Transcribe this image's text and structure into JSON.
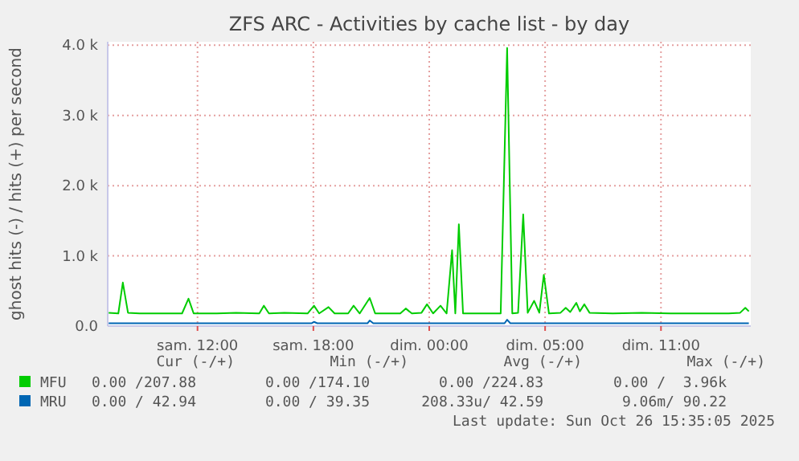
{
  "chart_data": {
    "type": "line",
    "title": "ZFS ARC - Activities by cache list - by day",
    "ylabel": "ghost hits (-) / hits (+) per second",
    "xlim": [
      "2025-10-25T05:21",
      "2025-10-26T14:39"
    ],
    "xticks": [
      {
        "value": "2025-10-25T10:00",
        "label": "sam. 12:00"
      },
      {
        "value": "2025-10-25T16:00",
        "label": "sam. 18:00"
      },
      {
        "value": "2025-10-25T22:00",
        "label": "dim. 00:00"
      },
      {
        "value": "2025-10-26T04:00",
        "label": "dim. 05:00"
      },
      {
        "value": "2025-10-26T10:00",
        "label": "dim. 11:00"
      }
    ],
    "ylim": [
      0,
      4050
    ],
    "yticks": [
      {
        "value": 0,
        "label": "0.0"
      },
      {
        "value": 1000,
        "label": "1.0 k"
      },
      {
        "value": 2000,
        "label": "2.0 k"
      },
      {
        "value": 3000,
        "label": "3.0 k"
      },
      {
        "value": 4000,
        "label": "4.0 k"
      }
    ],
    "grid": true,
    "legend": "bottom left",
    "series": [
      {
        "name": "MFU",
        "color": "#00cc00",
        "x": [
          "2025-10-25T05:24",
          "2025-10-25T05:54",
          "2025-10-25T06:08",
          "2025-10-25T06:24",
          "2025-10-25T07:00",
          "2025-10-25T08:00",
          "2025-10-25T09:12",
          "2025-10-25T09:32",
          "2025-10-25T09:48",
          "2025-10-25T11:00",
          "2025-10-25T12:00",
          "2025-10-25T13:12",
          "2025-10-25T13:26",
          "2025-10-25T13:42",
          "2025-10-25T14:30",
          "2025-10-25T15:42",
          "2025-10-25T16:02",
          "2025-10-25T16:18",
          "2025-10-25T16:47",
          "2025-10-25T17:06",
          "2025-10-25T17:48",
          "2025-10-25T18:05",
          "2025-10-25T18:24",
          "2025-10-25T18:55",
          "2025-10-25T19:12",
          "2025-10-25T20:30",
          "2025-10-25T20:47",
          "2025-10-25T21:06",
          "2025-10-25T21:36",
          "2025-10-25T21:53",
          "2025-10-25T22:12",
          "2025-10-25T22:35",
          "2025-10-25T22:54",
          "2025-10-25T23:11",
          "2025-10-25T23:21",
          "2025-10-25T23:32",
          "2025-10-25T23:45",
          "2025-10-26T00:30",
          "2025-10-26T01:42",
          "2025-10-26T02:02",
          "2025-10-26T02:18",
          "2025-10-26T02:36",
          "2025-10-26T02:52",
          "2025-10-26T03:06",
          "2025-10-26T03:26",
          "2025-10-26T03:42",
          "2025-10-26T03:56",
          "2025-10-26T04:12",
          "2025-10-26T04:48",
          "2025-10-26T05:04",
          "2025-10-26T05:18",
          "2025-10-26T05:37",
          "2025-10-26T05:48",
          "2025-10-26T06:02",
          "2025-10-26T06:18",
          "2025-10-26T07:30",
          "2025-10-26T09:00",
          "2025-10-26T10:30",
          "2025-10-26T12:00",
          "2025-10-26T13:30",
          "2025-10-26T14:06",
          "2025-10-26T14:22",
          "2025-10-26T14:33"
        ],
        "values": [
          190,
          180,
          620,
          190,
          180,
          180,
          180,
          390,
          180,
          180,
          190,
          180,
          290,
          180,
          190,
          180,
          290,
          180,
          270,
          180,
          180,
          290,
          180,
          400,
          180,
          180,
          250,
          180,
          190,
          310,
          180,
          290,
          180,
          1080,
          180,
          1450,
          180,
          180,
          180,
          3960,
          180,
          190,
          1590,
          190,
          360,
          190,
          730,
          180,
          190,
          260,
          200,
          330,
          210,
          310,
          190,
          180,
          190,
          180,
          180,
          180,
          190,
          260,
          210
        ]
      },
      {
        "name": "MRU",
        "color": "#0066b3",
        "x": [
          "2025-10-25T05:24",
          "2025-10-25T15:54",
          "2025-10-25T16:02",
          "2025-10-25T16:12",
          "2025-10-25T18:48",
          "2025-10-25T18:55",
          "2025-10-25T19:06",
          "2025-10-26T01:54",
          "2025-10-26T02:02",
          "2025-10-26T02:12",
          "2025-10-26T14:33"
        ],
        "values": [
          40,
          40,
          60,
          40,
          40,
          80,
          40,
          40,
          90,
          40,
          40
        ]
      }
    ],
    "annotations": [
      "Cur (-/+)",
      "Min (-/+)",
      "Avg (-/+)",
      "Max (-/+)",
      "0.00 /207.88",
      "0.00 /174.10",
      "0.00 /224.83",
      "0.00 /  3.96k",
      "0.00 / 42.94",
      "0.00 / 39.35",
      "208.33u/ 42.59",
      "9.06m/ 90.22",
      "Last update: Sun Oct 26 15:35:05 2025"
    ]
  }
}
